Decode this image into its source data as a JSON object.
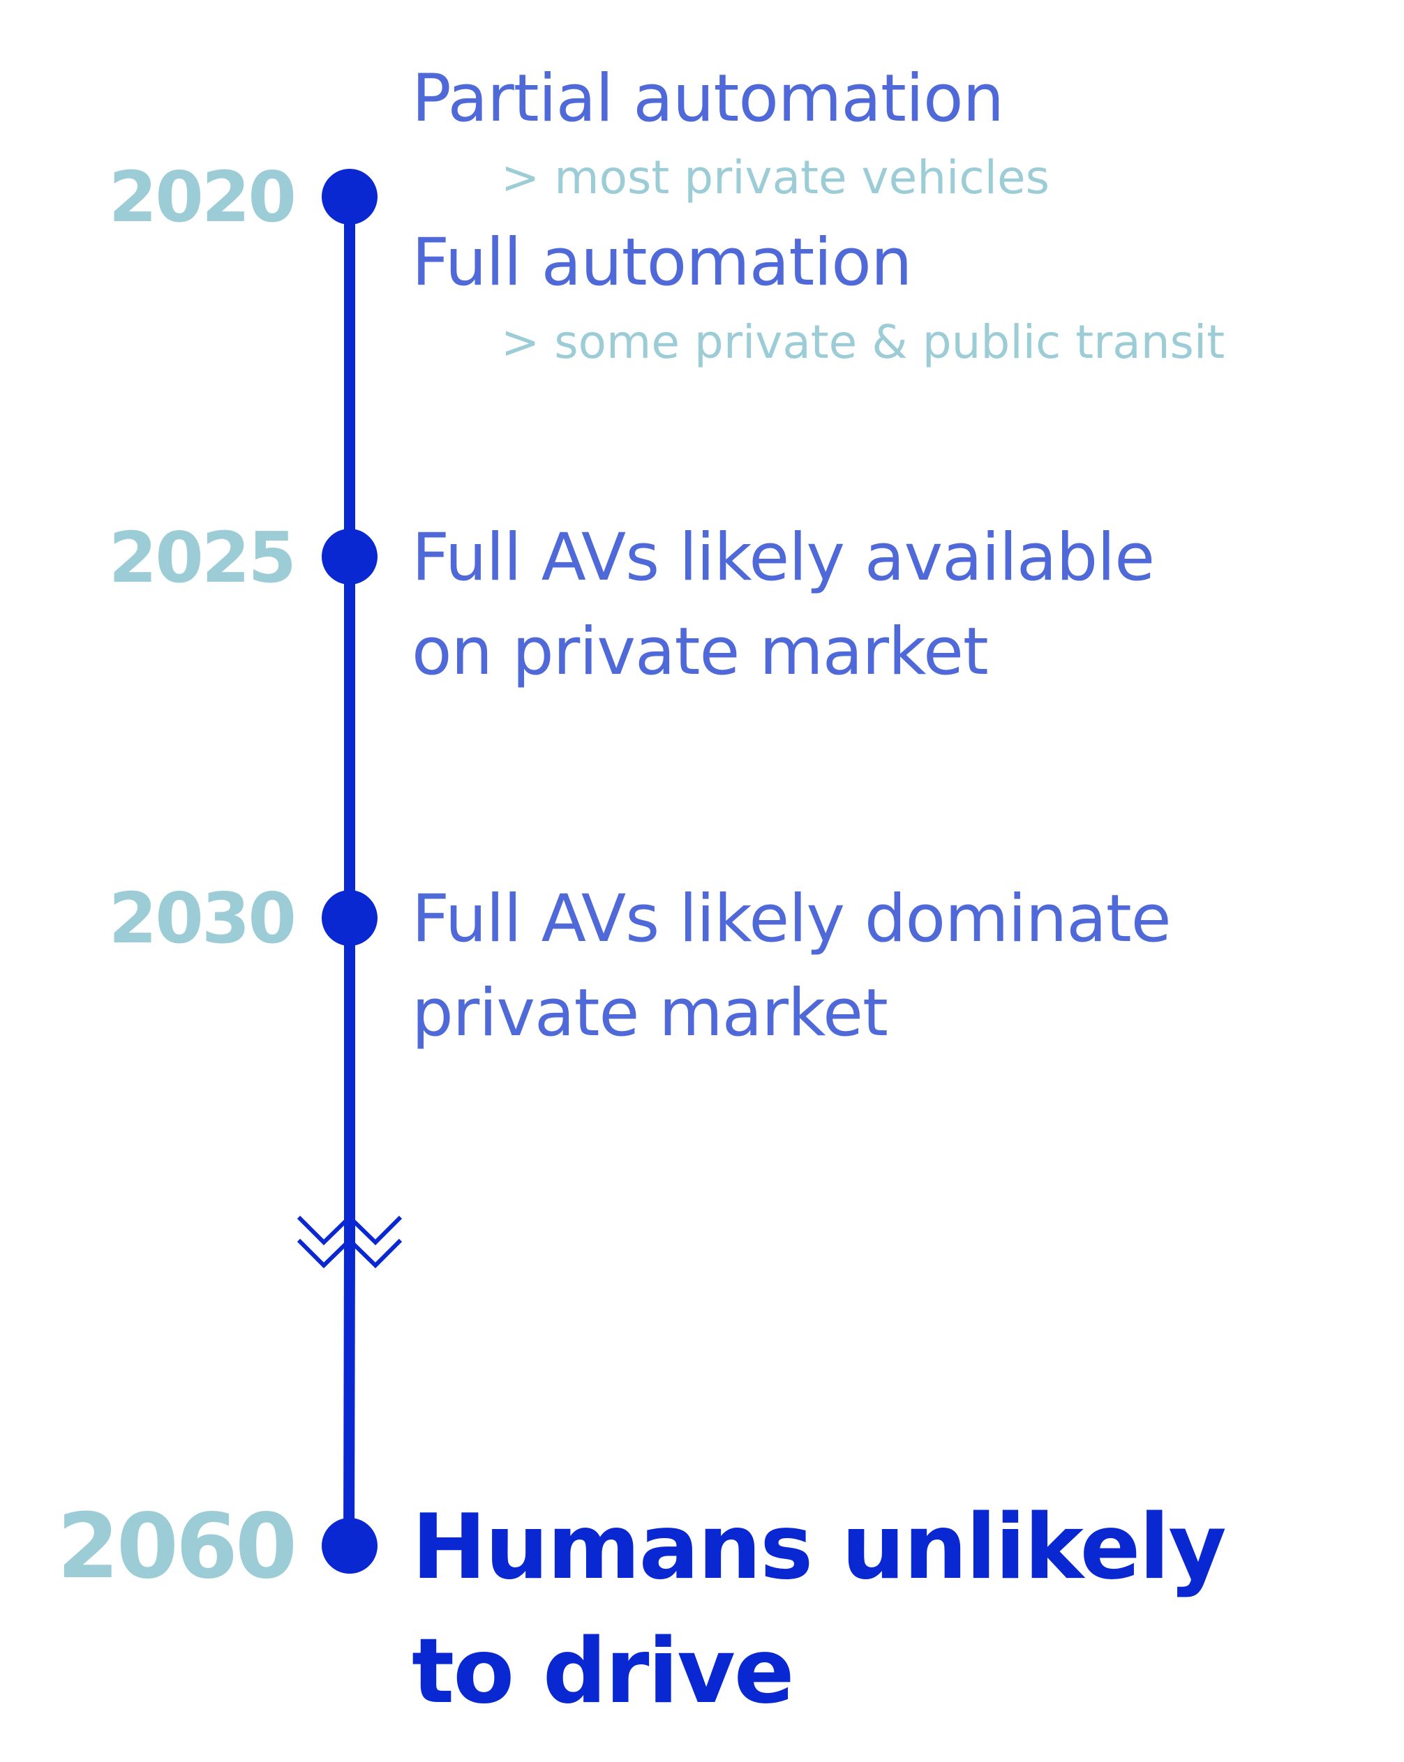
{
  "colors": {
    "line": "#0a28d1",
    "year": "#9ccdd7",
    "title": "#5069d9",
    "subtitle": "#9ccdd7",
    "final": "#0a28d1"
  },
  "events": [
    {
      "year": "2020",
      "items": [
        {
          "title": "Partial automation",
          "detail": "> most private vehicles"
        },
        {
          "title": "Full automation",
          "detail": "> some private & public transit"
        }
      ]
    },
    {
      "year": "2025",
      "lines": [
        "Full AVs likely available",
        "on private market"
      ]
    },
    {
      "year": "2030",
      "lines": [
        "Full AVs likely dominate",
        "private market"
      ]
    },
    {
      "year": "2060",
      "lines": [
        "Humans unlikely",
        "to drive"
      ]
    }
  ],
  "break_marker": "chevron-break-icon"
}
